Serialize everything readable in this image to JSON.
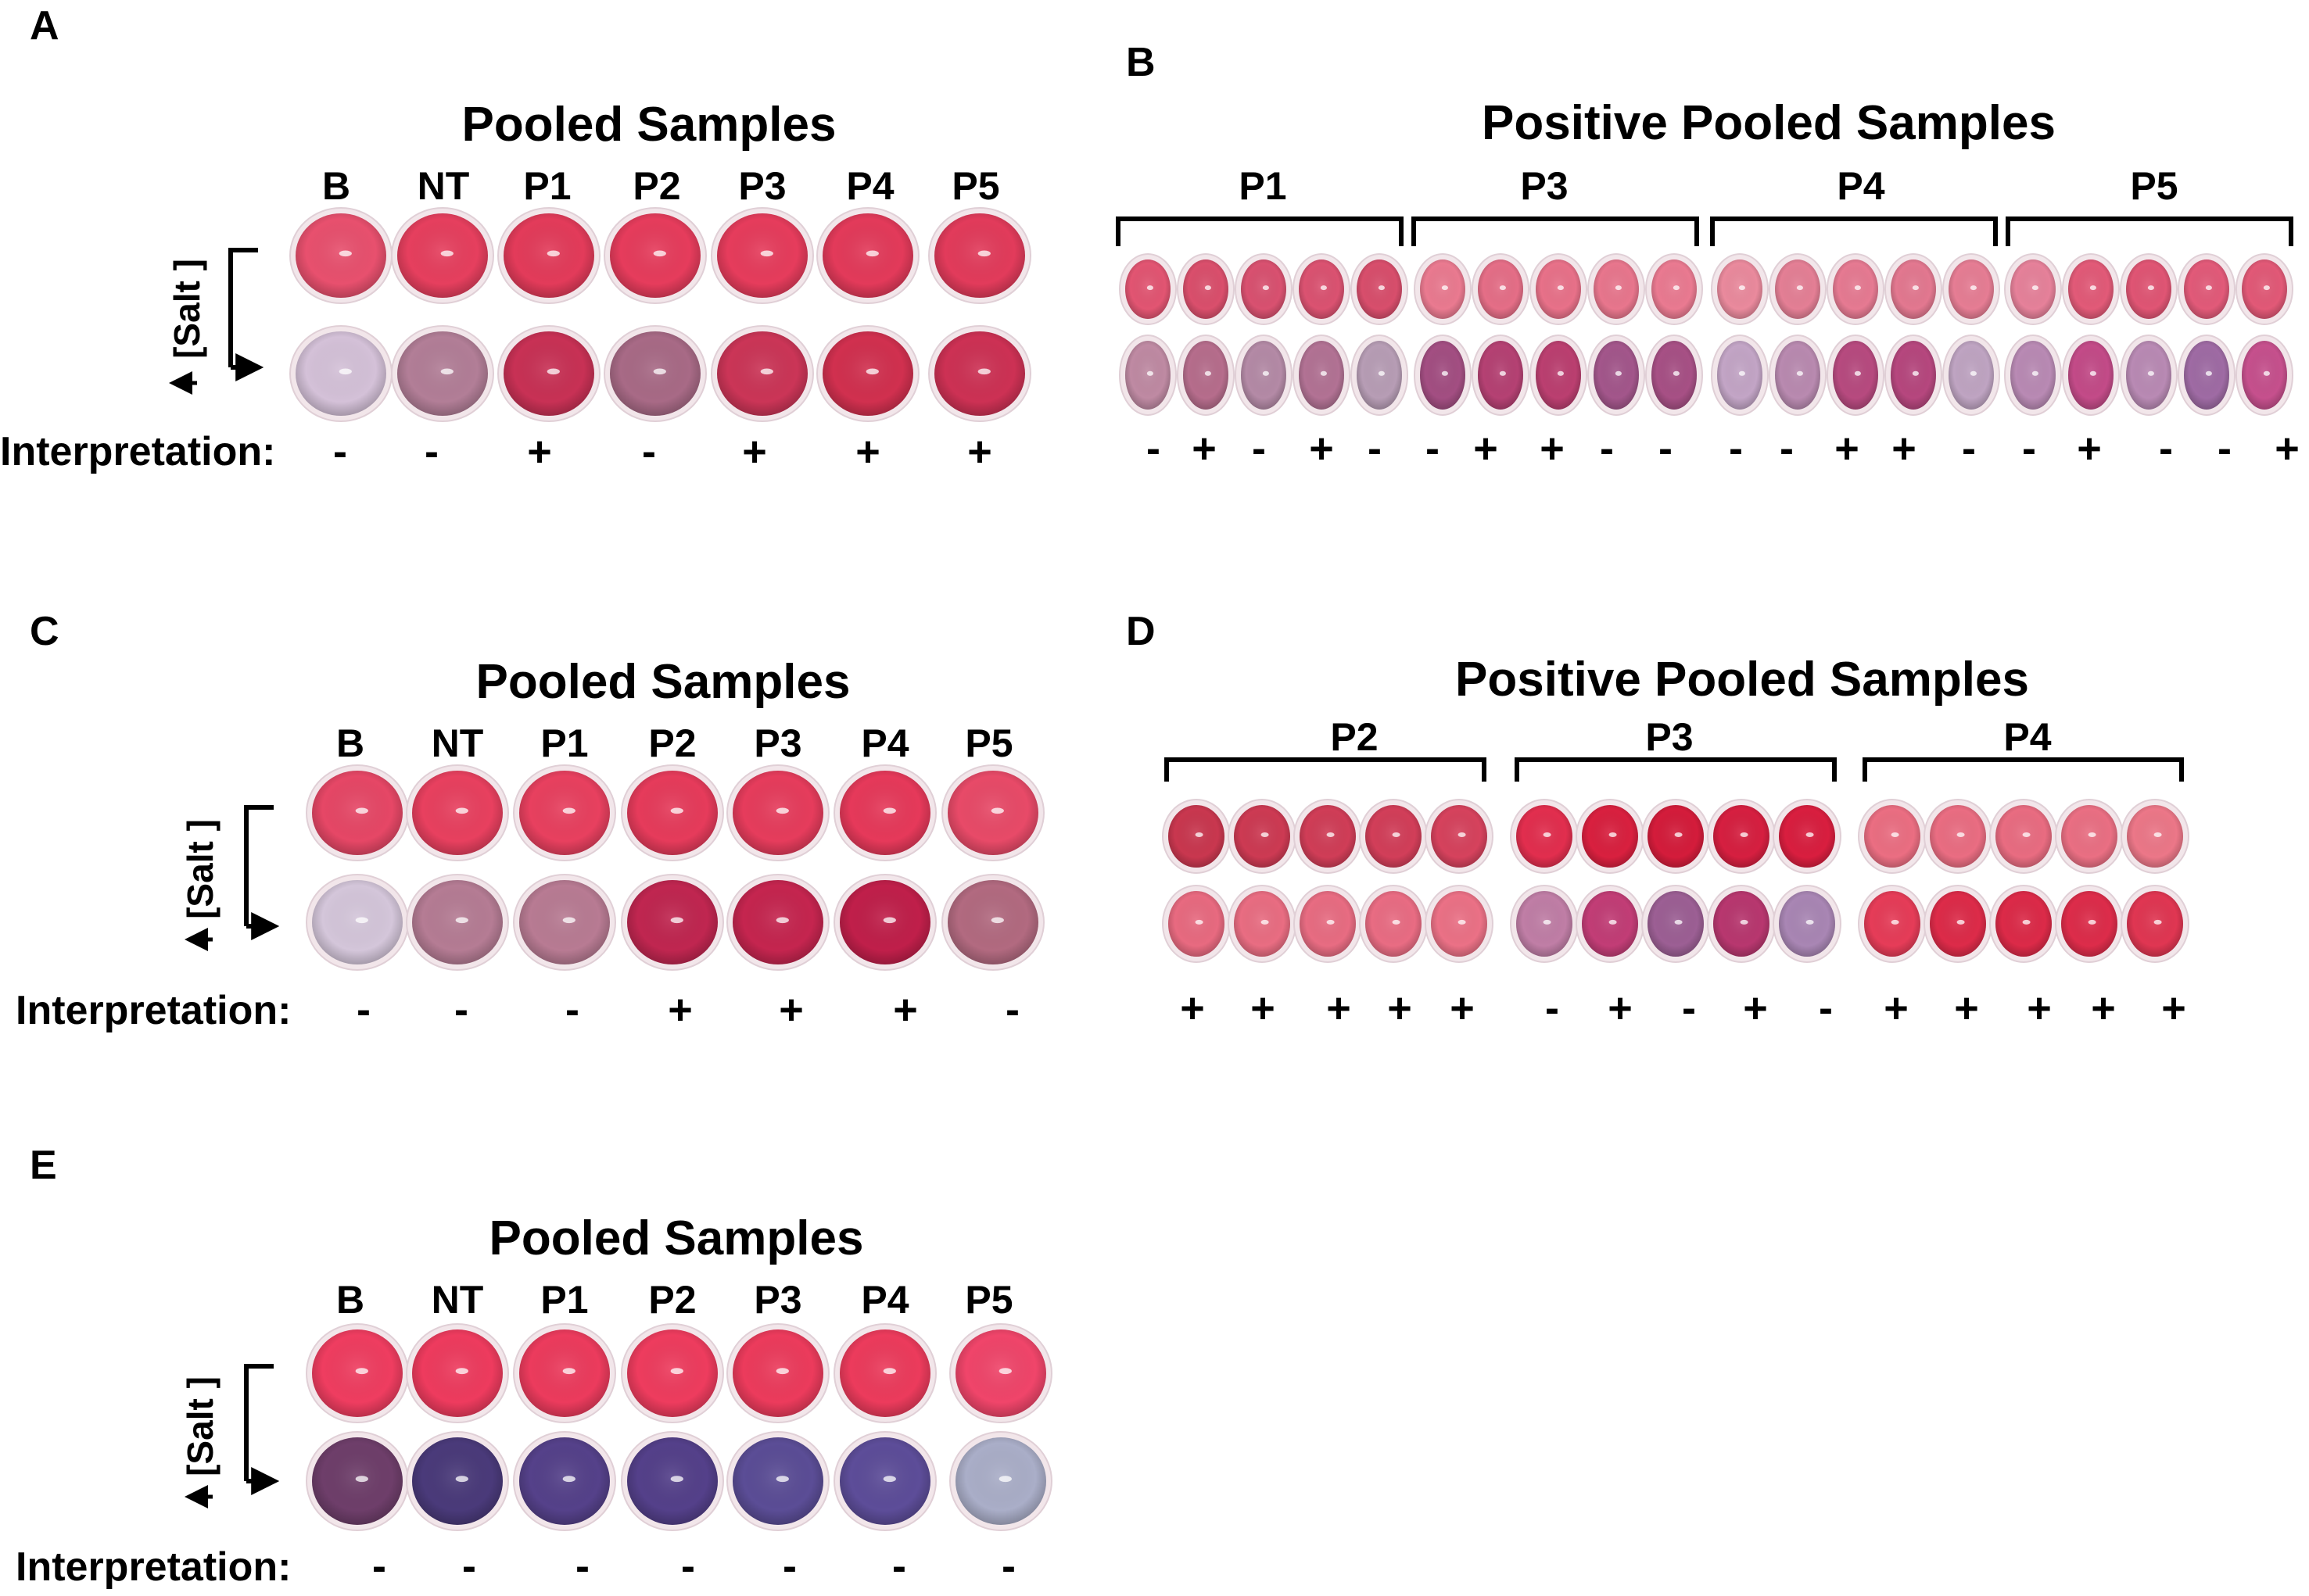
{
  "figure": {
    "salt_axis_label": "[Salt ]",
    "interpretation_label": "Interpretation:",
    "panels": [
      {
        "id": "A",
        "title": "Pooled Samples",
        "columns": [
          "B",
          "NT",
          "P1",
          "P2",
          "P3",
          "P4",
          "P5"
        ],
        "row1_colors": [
          "#e8506e",
          "#e63f5e",
          "#e33b5a",
          "#e63c5c",
          "#e63c5c",
          "#e33a5a",
          "#e23b5b"
        ],
        "row2_colors": [
          "#d4c1d8",
          "#b27e97",
          "#c83155",
          "#a86a86",
          "#cb3557",
          "#d1304f",
          "#cd3154"
        ],
        "interpretation": [
          "-",
          "-",
          "+",
          "-",
          "+",
          "+",
          "+"
        ]
      },
      {
        "id": "B",
        "title": "Positive Pooled Samples",
        "groups": [
          {
            "name": "P1",
            "row1_colors": [
              "#e25572",
              "#da4f6c",
              "#d95170",
              "#db5271",
              "#d84e6c"
            ],
            "row2_colors": [
              "#bf8aa3",
              "#b66d8c",
              "#b48aa6",
              "#b27294",
              "#b79db5"
            ],
            "interpretation": [
              "-",
              "+",
              "-",
              "+",
              "-"
            ]
          },
          {
            "name": "P3",
            "row1_colors": [
              "#ea7a90",
              "#e56e87",
              "#e87189",
              "#e8768d",
              "#ea7a91"
            ],
            "row2_colors": [
              "#a34e82",
              "#b54173",
              "#bb3f70",
              "#a3568b",
              "#a75085"
            ],
            "interpretation": [
              "-",
              "+",
              "+",
              "-",
              "-"
            ]
          },
          {
            "name": "P4",
            "row1_colors": [
              "#ea8a9d",
              "#e47f95",
              "#e67a92",
              "#e37890",
              "#e67d94"
            ],
            "row2_colors": [
              "#c3a5c6",
              "#b98ab0",
              "#b74a7f",
              "#b6477e",
              "#bfa4c2"
            ],
            "interpretation": [
              "-",
              "-",
              "+",
              "+",
              "-"
            ]
          },
          {
            "name": "P5",
            "row1_colors": [
              "#e6819a",
              "#e25a78",
              "#e05574",
              "#e25a79",
              "#e25977"
            ],
            "row2_colors": [
              "#b98ab4",
              "#c34b88",
              "#b98ab4",
              "#9f6ba4",
              "#c6508d"
            ],
            "interpretation": [
              "-",
              "+",
              "-",
              "-",
              "+"
            ]
          }
        ]
      },
      {
        "id": "C",
        "title": "Pooled Samples",
        "columns": [
          "B",
          "NT",
          "P1",
          "P2",
          "P3",
          "P4",
          "P5"
        ],
        "row1_colors": [
          "#e64766",
          "#e8405f",
          "#e8405f",
          "#e63b5b",
          "#e63c5c",
          "#e6395a",
          "#e84a68"
        ],
        "row2_colors": [
          "#d4c6da",
          "#b57c94",
          "#b87b93",
          "#c02650",
          "#c5254f",
          "#c01f4a",
          "#b26a80"
        ],
        "interpretation": [
          "-",
          "-",
          "-",
          "+",
          "+",
          "+",
          "-"
        ]
      },
      {
        "id": "D",
        "title": "Positive Pooled Samples",
        "groups": [
          {
            "name": "P2",
            "row1_colors": [
              "#c9374f",
              "#cd3a53",
              "#d03d57",
              "#d23e59",
              "#d6425d"
            ],
            "row2_colors": [
              "#e86a80",
              "#e96d82",
              "#e86c82",
              "#e96c83",
              "#eb7186"
            ],
            "interpretation": [
              "+",
              "+",
              "+",
              "+",
              "+"
            ]
          },
          {
            "name": "P3",
            "row1_colors": [
              "#e22e4e",
              "#d9203f",
              "#d41c3b",
              "#d61f40",
              "#d91e3f"
            ],
            "row2_colors": [
              "#c07ea6",
              "#c23d76",
              "#9c5f94",
              "#b8376f",
              "#a986b4"
            ],
            "interpretation": [
              "-",
              "+",
              "-",
              "+",
              "-"
            ]
          },
          {
            "name": "P4",
            "row1_colors": [
              "#eb6e82",
              "#ea6d82",
              "#e96c81",
              "#ea6f83",
              "#ec7788"
            ],
            "row2_colors": [
              "#e63c58",
              "#dd2b49",
              "#dc2a48",
              "#dd2c4a",
              "#e03652"
            ],
            "interpretation": [
              "+",
              "+",
              "+",
              "+",
              "+"
            ]
          }
        ]
      },
      {
        "id": "E",
        "title": "Pooled Samples",
        "columns": [
          "B",
          "NT",
          "P1",
          "P2",
          "P3",
          "P4",
          "P5"
        ],
        "row1_colors": [
          "#ef3d60",
          "#ee3b5e",
          "#ec3b5d",
          "#ee3c5e",
          "#ec3b5c",
          "#ec3b5c",
          "#f0456a"
        ],
        "row2_colors": [
          "#6e3e6a",
          "#4a3a7a",
          "#55418a",
          "#54408a",
          "#5b4d96",
          "#5d4d99",
          "#aaaec8"
        ],
        "interpretation": [
          "-",
          "-",
          "-",
          "-",
          "-",
          "-",
          "-"
        ]
      }
    ]
  }
}
